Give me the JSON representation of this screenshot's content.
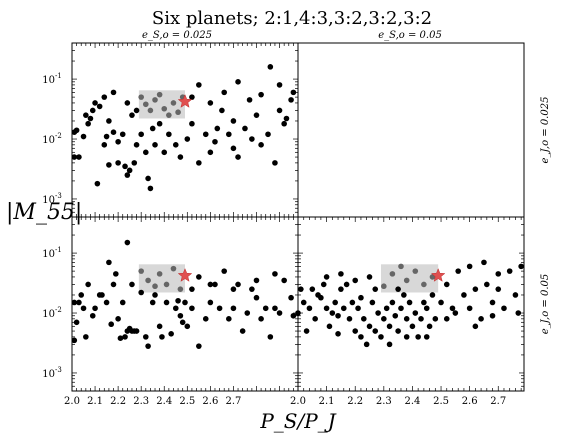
{
  "chart_data": {
    "type": "scatter",
    "title": "Six planets; 2:1,4:3,3:2,3:2,3:2",
    "xlabel": "P_S/P_J",
    "ylabel": "|M_55|",
    "y_scale": "log",
    "ylim": [
      0.0005,
      0.4
    ],
    "x_ticks": [
      "2.0",
      "2.1",
      "2.2",
      "2.3",
      "2.4",
      "2.5",
      "2.6",
      "2.7"
    ],
    "x_ticks_right": [
      "2.0",
      "2.1",
      "2.2",
      "2.3",
      "2.4",
      "2.5",
      "2.6",
      "2.7"
    ],
    "y_ticks": [
      "10^-3",
      "10^-2",
      "10^-1"
    ],
    "col_labels": [
      "e_S,o = 0.025",
      "e_S,o = 0.05"
    ],
    "row_labels": [
      "e_J,o = 0.025",
      "e_J,o = 0.05"
    ],
    "colors": {
      "point": "#000000",
      "box_point": "#666666",
      "star": "#e05050",
      "box": "#d8d8d8"
    },
    "panels": [
      {
        "col": "e_S,o = 0.025",
        "row": "e_J,o = 0.025",
        "xlim": [
          2.0,
          2.98
        ],
        "box": {
          "x": [
            2.29,
            2.49
          ],
          "y": [
            0.022,
            0.065
          ]
        },
        "star": {
          "x": 2.49,
          "y": 0.042
        },
        "points": [
          [
            2.01,
            0.013
          ],
          [
            2.02,
            0.014
          ],
          [
            2.01,
            0.005
          ],
          [
            2.03,
            0.005
          ],
          [
            2.06,
            0.025
          ],
          [
            2.08,
            0.022
          ],
          [
            2.09,
            0.03
          ],
          [
            2.1,
            0.04
          ],
          [
            2.12,
            0.035
          ],
          [
            2.14,
            0.008
          ],
          [
            2.15,
            0.011
          ],
          [
            2.16,
            0.02
          ],
          [
            2.18,
            0.013
          ],
          [
            2.2,
            0.009
          ],
          [
            2.22,
            0.012
          ],
          [
            2.2,
            0.004
          ],
          [
            2.23,
            0.0035
          ],
          [
            2.25,
            0.003
          ],
          [
            2.24,
            0.0025
          ],
          [
            2.27,
            0.004
          ],
          [
            2.28,
            0.008
          ],
          [
            2.3,
            0.012
          ],
          [
            2.32,
            0.006
          ],
          [
            2.33,
            0.0022
          ],
          [
            2.34,
            0.0015
          ],
          [
            2.35,
            0.015
          ],
          [
            2.36,
            0.008
          ],
          [
            2.38,
            0.018
          ],
          [
            2.4,
            0.006
          ],
          [
            2.42,
            0.012
          ],
          [
            2.45,
            0.008
          ],
          [
            2.47,
            0.005
          ],
          [
            2.5,
            0.01
          ],
          [
            2.52,
            0.018
          ],
          [
            2.55,
            0.004
          ],
          [
            2.58,
            0.012
          ],
          [
            2.6,
            0.006
          ],
          [
            2.62,
            0.009
          ],
          [
            2.65,
            0.03
          ],
          [
            2.68,
            0.012
          ],
          [
            2.7,
            0.02
          ],
          [
            2.72,
            0.005
          ],
          [
            2.75,
            0.015
          ],
          [
            2.78,
            0.01
          ],
          [
            2.8,
            0.025
          ],
          [
            2.82,
            0.008
          ],
          [
            2.85,
            0.012
          ],
          [
            2.88,
            0.004
          ],
          [
            2.9,
            0.03
          ],
          [
            2.92,
            0.018
          ],
          [
            2.95,
            0.045
          ],
          [
            2.96,
            0.06
          ],
          [
            2.14,
            0.05
          ],
          [
            2.18,
            0.06
          ],
          [
            2.24,
            0.04
          ],
          [
            2.26,
            0.025
          ],
          [
            2.28,
            0.03
          ],
          [
            2.52,
            0.05
          ],
          [
            2.55,
            0.08
          ],
          [
            2.6,
            0.04
          ],
          [
            2.66,
            0.06
          ],
          [
            2.72,
            0.09
          ],
          [
            2.77,
            0.045
          ],
          [
            2.82,
            0.055
          ],
          [
            2.86,
            0.16
          ],
          [
            2.9,
            0.08
          ],
          [
            2.93,
            0.022
          ],
          [
            2.63,
            0.015
          ],
          [
            2.7,
            0.007
          ],
          [
            2.05,
            0.011
          ],
          [
            2.11,
            0.0018
          ],
          [
            2.16,
            0.0037
          ],
          [
            2.07,
            0.018
          ]
        ],
        "box_points": [
          [
            2.3,
            0.05
          ],
          [
            2.32,
            0.038
          ],
          [
            2.34,
            0.03
          ],
          [
            2.36,
            0.045
          ],
          [
            2.38,
            0.055
          ],
          [
            2.4,
            0.032
          ],
          [
            2.42,
            0.025
          ],
          [
            2.44,
            0.04
          ],
          [
            2.46,
            0.028
          ],
          [
            2.48,
            0.05
          ]
        ]
      },
      {
        "col": "e_S,o = 0.025",
        "row": "e_J,o = 0.05",
        "xlim": [
          2.0,
          2.98
        ],
        "box": {
          "x": [
            2.29,
            2.49
          ],
          "y": [
            0.022,
            0.065
          ]
        },
        "star": {
          "x": 2.49,
          "y": 0.042
        },
        "points": [
          [
            2.01,
            0.015
          ],
          [
            2.02,
            0.007
          ],
          [
            2.01,
            0.0035
          ],
          [
            2.03,
            0.015
          ],
          [
            2.05,
            0.012
          ],
          [
            2.07,
            0.03
          ],
          [
            2.09,
            0.009
          ],
          [
            2.1,
            0.012
          ],
          [
            2.13,
            0.02
          ],
          [
            2.15,
            0.015
          ],
          [
            2.16,
            0.07
          ],
          [
            2.18,
            0.03
          ],
          [
            2.19,
            0.045
          ],
          [
            2.2,
            0.008
          ],
          [
            2.22,
            0.015
          ],
          [
            2.23,
            0.004
          ],
          [
            2.24,
            0.005
          ],
          [
            2.25,
            0.0055
          ],
          [
            2.27,
            0.005
          ],
          [
            2.28,
            0.005
          ],
          [
            2.26,
            0.005
          ],
          [
            2.24,
            0.15
          ],
          [
            2.3,
            0.022
          ],
          [
            2.32,
            0.004
          ],
          [
            2.33,
            0.0028
          ],
          [
            2.35,
            0.015
          ],
          [
            2.36,
            0.02
          ],
          [
            2.38,
            0.006
          ],
          [
            2.39,
            0.004
          ],
          [
            2.41,
            0.015
          ],
          [
            2.43,
            0.0045
          ],
          [
            2.45,
            0.012
          ],
          [
            2.47,
            0.009
          ],
          [
            2.5,
            0.006
          ],
          [
            2.52,
            0.012
          ],
          [
            2.55,
            0.0028
          ],
          [
            2.58,
            0.008
          ],
          [
            2.6,
            0.015
          ],
          [
            2.62,
            0.03
          ],
          [
            2.64,
            0.012
          ],
          [
            2.66,
            0.05
          ],
          [
            2.68,
            0.008
          ],
          [
            2.7,
            0.012
          ],
          [
            2.72,
            0.03
          ],
          [
            2.74,
            0.005
          ],
          [
            2.76,
            0.01
          ],
          [
            2.78,
            0.025
          ],
          [
            2.8,
            0.018
          ],
          [
            2.82,
            0.008
          ],
          [
            2.84,
            0.012
          ],
          [
            2.86,
            0.004
          ],
          [
            2.88,
            0.045
          ],
          [
            2.9,
            0.01
          ],
          [
            2.92,
            0.035
          ],
          [
            2.95,
            0.018
          ],
          [
            2.96,
            0.009
          ],
          [
            2.26,
            0.03
          ],
          [
            2.52,
            0.025
          ],
          [
            2.55,
            0.04
          ],
          [
            2.6,
            0.03
          ],
          [
            2.7,
            0.025
          ],
          [
            2.8,
            0.035
          ],
          [
            2.88,
            0.012
          ],
          [
            2.48,
            0.007
          ],
          [
            2.46,
            0.016
          ],
          [
            2.17,
            0.0065
          ],
          [
            2.12,
            0.02
          ],
          [
            2.04,
            0.02
          ],
          [
            2.06,
            0.004
          ],
          [
            2.21,
            0.0038
          ],
          [
            2.49,
            0.015
          ]
        ],
        "box_points": [
          [
            2.3,
            0.05
          ],
          [
            2.33,
            0.035
          ],
          [
            2.36,
            0.028
          ],
          [
            2.38,
            0.045
          ],
          [
            2.41,
            0.03
          ],
          [
            2.44,
            0.055
          ],
          [
            2.47,
            0.025
          ]
        ]
      },
      {
        "col": "e_S,o = 0.05",
        "row": "e_J,o = 0.05",
        "xlim": [
          2.0,
          2.79
        ],
        "box": {
          "x": [
            2.29,
            2.49
          ],
          "y": [
            0.022,
            0.065
          ]
        },
        "star": {
          "x": 2.49,
          "y": 0.042
        },
        "points": [
          [
            2.01,
            0.025
          ],
          [
            2.02,
            0.015
          ],
          [
            2.03,
            0.005
          ],
          [
            2.04,
            0.012
          ],
          [
            2.05,
            0.025
          ],
          [
            2.06,
            0.008
          ],
          [
            2.07,
            0.02
          ],
          [
            2.08,
            0.018
          ],
          [
            2.09,
            0.03
          ],
          [
            2.1,
            0.012
          ],
          [
            2.11,
            0.006
          ],
          [
            2.12,
            0.01
          ],
          [
            2.13,
            0.015
          ],
          [
            2.14,
            0.009
          ],
          [
            2.15,
            0.025
          ],
          [
            2.16,
            0.012
          ],
          [
            2.17,
            0.03
          ],
          [
            2.18,
            0.008
          ],
          [
            2.19,
            0.015
          ],
          [
            2.2,
            0.005
          ],
          [
            2.21,
            0.012
          ],
          [
            2.22,
            0.004
          ],
          [
            2.23,
            0.008
          ],
          [
            2.24,
            0.003
          ],
          [
            2.25,
            0.006
          ],
          [
            2.26,
            0.015
          ],
          [
            2.27,
            0.005
          ],
          [
            2.28,
            0.01
          ],
          [
            2.29,
            0.004
          ],
          [
            2.3,
            0.008
          ],
          [
            2.31,
            0.012
          ],
          [
            2.32,
            0.006
          ],
          [
            2.33,
            0.015
          ],
          [
            2.34,
            0.009
          ],
          [
            2.35,
            0.005
          ],
          [
            2.36,
            0.012
          ],
          [
            2.37,
            0.02
          ],
          [
            2.38,
            0.008
          ],
          [
            2.39,
            0.015
          ],
          [
            2.4,
            0.006
          ],
          [
            2.41,
            0.01
          ],
          [
            2.42,
            0.004
          ],
          [
            2.43,
            0.008
          ],
          [
            2.44,
            0.015
          ],
          [
            2.45,
            0.012
          ],
          [
            2.46,
            0.006
          ],
          [
            2.47,
            0.02
          ],
          [
            2.48,
            0.008
          ],
          [
            2.5,
            0.015
          ],
          [
            2.52,
            0.03
          ],
          [
            2.54,
            0.012
          ],
          [
            2.56,
            0.05
          ],
          [
            2.58,
            0.02
          ],
          [
            2.6,
            0.012
          ],
          [
            2.62,
            0.025
          ],
          [
            2.64,
            0.008
          ],
          [
            2.66,
            0.03
          ],
          [
            2.68,
            0.015
          ],
          [
            2.7,
            0.025
          ],
          [
            2.72,
            0.012
          ],
          [
            2.74,
            0.05
          ],
          [
            2.76,
            0.02
          ],
          [
            2.78,
            0.06
          ],
          [
            2.1,
            0.04
          ],
          [
            2.15,
            0.045
          ],
          [
            2.2,
            0.035
          ],
          [
            2.25,
            0.04
          ],
          [
            2.27,
            0.025
          ],
          [
            2.38,
            0.004
          ],
          [
            2.45,
            0.004
          ],
          [
            2.52,
            0.008
          ],
          [
            2.55,
            0.01
          ],
          [
            2.62,
            0.006
          ],
          [
            2.68,
            0.009
          ],
          [
            2.6,
            0.06
          ],
          [
            2.65,
            0.07
          ],
          [
            2.7,
            0.045
          ],
          [
            2.77,
            0.01
          ],
          [
            2.0,
            0.01
          ],
          [
            2.32,
            0.003
          ],
          [
            2.14,
            0.0045
          ],
          [
            2.22,
            0.018
          ],
          [
            2.35,
            0.025
          ]
        ],
        "box_points": [
          [
            2.3,
            0.028
          ],
          [
            2.33,
            0.045
          ],
          [
            2.36,
            0.06
          ],
          [
            2.38,
            0.035
          ],
          [
            2.41,
            0.05
          ],
          [
            2.44,
            0.03
          ],
          [
            2.47,
            0.04
          ]
        ]
      }
    ]
  }
}
